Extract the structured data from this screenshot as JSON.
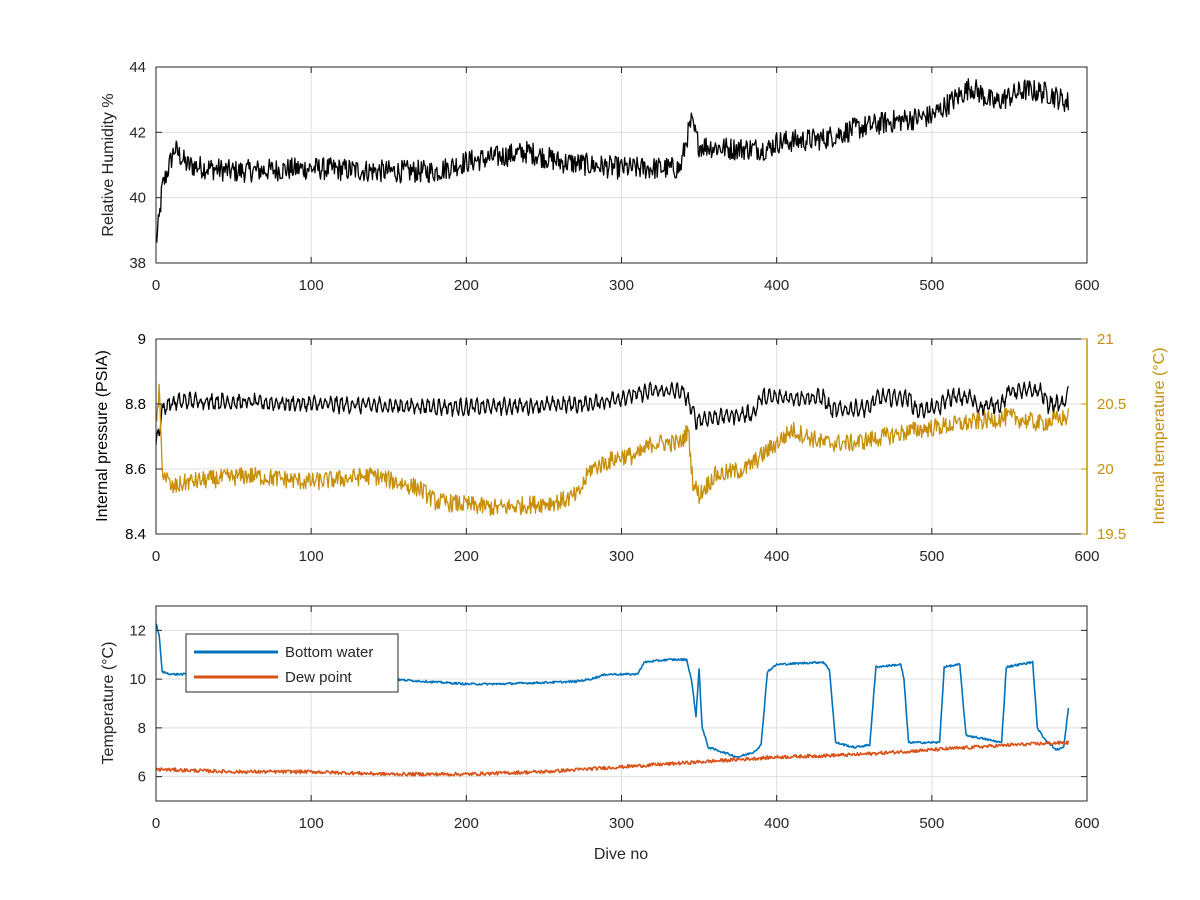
{
  "colors": {
    "black": "#000000",
    "bottom_water": "#0072BD",
    "dew_point": "#D95319",
    "internal_temperature": "#C8900A",
    "axis": "#262626",
    "grid": "#DFDFDF"
  },
  "chart_data": [
    {
      "type": "line",
      "title": "",
      "xlabel": "",
      "ylabel": "Relative Humidity %",
      "xlim": [
        0,
        600
      ],
      "ylim": [
        38,
        44
      ],
      "xticks": [
        0,
        100,
        200,
        300,
        400,
        500,
        600
      ],
      "yticks": [
        38,
        40,
        42,
        44
      ],
      "grid": true,
      "series": [
        {
          "color": "#000000",
          "noise": 0.35,
          "points": [
            [
              0,
              38.6
            ],
            [
              2,
              39.3
            ],
            [
              4,
              40.3
            ],
            [
              8,
              40.9
            ],
            [
              12,
              41.5
            ],
            [
              20,
              41.0
            ],
            [
              50,
              40.8
            ],
            [
              100,
              40.9
            ],
            [
              150,
              40.8
            ],
            [
              180,
              40.8
            ],
            [
              200,
              41.1
            ],
            [
              240,
              41.4
            ],
            [
              260,
              41.1
            ],
            [
              300,
              40.9
            ],
            [
              320,
              40.9
            ],
            [
              338,
              40.9
            ],
            [
              342,
              41.8
            ],
            [
              345,
              42.3
            ],
            [
              350,
              41.6
            ],
            [
              370,
              41.5
            ],
            [
              395,
              41.5
            ],
            [
              400,
              41.7
            ],
            [
              430,
              41.8
            ],
            [
              450,
              42.1
            ],
            [
              470,
              42.3
            ],
            [
              500,
              42.5
            ],
            [
              520,
              43.2
            ],
            [
              525,
              43.4
            ],
            [
              540,
              42.9
            ],
            [
              560,
              43.3
            ],
            [
              575,
              43.2
            ],
            [
              588,
              42.9
            ]
          ]
        }
      ]
    },
    {
      "type": "line",
      "title": "",
      "xlabel": "",
      "ylabel": "Internal pressure (PSIA)",
      "y2label": "Internal temperature (°C)",
      "xlim": [
        0,
        600
      ],
      "ylim": [
        8.4,
        9
      ],
      "y2lim": [
        19.5,
        21
      ],
      "xticks": [
        0,
        100,
        200,
        300,
        400,
        500,
        600
      ],
      "yticks": [
        8.4,
        8.6,
        8.8,
        9
      ],
      "y2ticks": [
        19.5,
        20,
        20.5,
        21
      ],
      "grid": true,
      "series": [
        {
          "axis": "left",
          "color": "#000000",
          "noise": 0.012,
          "osc": 0.018,
          "points": [
            [
              0,
              8.68
            ],
            [
              2,
              8.72
            ],
            [
              4,
              8.78
            ],
            [
              8,
              8.8
            ],
            [
              20,
              8.81
            ],
            [
              100,
              8.8
            ],
            [
              200,
              8.79
            ],
            [
              280,
              8.8
            ],
            [
              300,
              8.82
            ],
            [
              320,
              8.84
            ],
            [
              338,
              8.84
            ],
            [
              342,
              8.82
            ],
            [
              348,
              8.75
            ],
            [
              360,
              8.76
            ],
            [
              385,
              8.77
            ],
            [
              390,
              8.82
            ],
            [
              430,
              8.82
            ],
            [
              435,
              8.78
            ],
            [
              460,
              8.79
            ],
            [
              465,
              8.82
            ],
            [
              485,
              8.82
            ],
            [
              490,
              8.78
            ],
            [
              505,
              8.79
            ],
            [
              510,
              8.82
            ],
            [
              525,
              8.82
            ],
            [
              530,
              8.79
            ],
            [
              545,
              8.8
            ],
            [
              550,
              8.84
            ],
            [
              570,
              8.84
            ],
            [
              575,
              8.8
            ],
            [
              585,
              8.8
            ],
            [
              588,
              8.84
            ]
          ]
        },
        {
          "axis": "right",
          "color": "#C8900A",
          "noise": 0.07,
          "points": [
            [
              0,
              20.3
            ],
            [
              2,
              20.6
            ],
            [
              4,
              20.0
            ],
            [
              10,
              19.85
            ],
            [
              20,
              19.9
            ],
            [
              60,
              19.95
            ],
            [
              100,
              19.9
            ],
            [
              140,
              19.95
            ],
            [
              170,
              19.85
            ],
            [
              180,
              19.75
            ],
            [
              220,
              19.7
            ],
            [
              260,
              19.75
            ],
            [
              272,
              19.8
            ],
            [
              280,
              20.0
            ],
            [
              300,
              20.1
            ],
            [
              310,
              20.1
            ],
            [
              320,
              20.2
            ],
            [
              338,
              20.2
            ],
            [
              343,
              20.3
            ],
            [
              346,
              19.9
            ],
            [
              350,
              19.8
            ],
            [
              360,
              19.95
            ],
            [
              380,
              20.0
            ],
            [
              395,
              20.15
            ],
            [
              410,
              20.3
            ],
            [
              430,
              20.2
            ],
            [
              450,
              20.2
            ],
            [
              470,
              20.25
            ],
            [
              490,
              20.3
            ],
            [
              520,
              20.35
            ],
            [
              550,
              20.4
            ],
            [
              570,
              20.35
            ],
            [
              588,
              20.4
            ]
          ]
        }
      ]
    },
    {
      "type": "line",
      "title": "",
      "xlabel": "Dive no",
      "ylabel": "Temperature (°C)",
      "xlim": [
        0,
        600
      ],
      "ylim": [
        5,
        13
      ],
      "xticks": [
        0,
        100,
        200,
        300,
        400,
        500,
        600
      ],
      "yticks": [
        6,
        8,
        10,
        12
      ],
      "grid": true,
      "legend": {
        "position": "top-left"
      },
      "series": [
        {
          "name": "Bottom water",
          "color": "#0072BD",
          "noise": 0.04,
          "points": [
            [
              0,
              12.3
            ],
            [
              2,
              11.8
            ],
            [
              4,
              10.3
            ],
            [
              10,
              10.2
            ],
            [
              50,
              10.2
            ],
            [
              100,
              10.1
            ],
            [
              150,
              10.0
            ],
            [
              200,
              9.8
            ],
            [
              220,
              9.8
            ],
            [
              270,
              9.9
            ],
            [
              280,
              10.0
            ],
            [
              290,
              10.2
            ],
            [
              300,
              10.2
            ],
            [
              310,
              10.2
            ],
            [
              315,
              10.7
            ],
            [
              330,
              10.8
            ],
            [
              342,
              10.8
            ],
            [
              345,
              10.0
            ],
            [
              348,
              8.5
            ],
            [
              350,
              10.4
            ],
            [
              352,
              8.0
            ],
            [
              356,
              7.2
            ],
            [
              375,
              6.8
            ],
            [
              385,
              7.0
            ],
            [
              390,
              7.3
            ],
            [
              394,
              10.3
            ],
            [
              400,
              10.6
            ],
            [
              430,
              10.7
            ],
            [
              434,
              10.4
            ],
            [
              438,
              7.4
            ],
            [
              450,
              7.2
            ],
            [
              460,
              7.3
            ],
            [
              464,
              10.5
            ],
            [
              480,
              10.6
            ],
            [
              482,
              10.0
            ],
            [
              485,
              7.4
            ],
            [
              505,
              7.4
            ],
            [
              508,
              10.5
            ],
            [
              518,
              10.6
            ],
            [
              522,
              7.7
            ],
            [
              545,
              7.4
            ],
            [
              548,
              10.5
            ],
            [
              565,
              10.7
            ],
            [
              568,
              8.0
            ],
            [
              572,
              7.6
            ],
            [
              580,
              7.1
            ],
            [
              585,
              7.2
            ],
            [
              588,
              8.8
            ]
          ]
        },
        {
          "name": "Dew point",
          "color": "#D95319",
          "noise": 0.07,
          "points": [
            [
              0,
              6.3
            ],
            [
              50,
              6.2
            ],
            [
              100,
              6.2
            ],
            [
              150,
              6.1
            ],
            [
              200,
              6.1
            ],
            [
              250,
              6.2
            ],
            [
              300,
              6.4
            ],
            [
              350,
              6.6
            ],
            [
              400,
              6.8
            ],
            [
              450,
              6.9
            ],
            [
              500,
              7.1
            ],
            [
              550,
              7.3
            ],
            [
              588,
              7.4
            ]
          ]
        }
      ]
    }
  ]
}
